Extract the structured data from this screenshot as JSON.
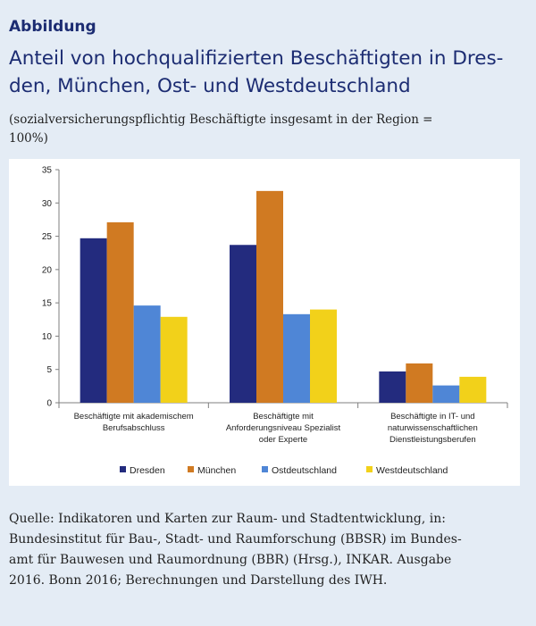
{
  "header": {
    "kicker": "Abbildung",
    "title_lines": [
      "Anteil von hochqualifizierten Beschäftigten in Dres-",
      "den, München, Ost- und Westdeutschland"
    ],
    "subtitle_lines": [
      "(sozialversicherungspflichtig Beschäftigte insgesamt in der Region =",
      "100%)"
    ]
  },
  "source_lines": [
    "Quelle: Indikatoren und Karten zur Raum- und Stadtentwicklung, in:",
    "Bundesinstitut für Bau-, Stadt- und Raumforschung (BBSR) im Bundes-",
    "amt für Bauwesen und Raumordnung (BBR) (Hrsg.), INKAR. Ausgabe",
    "2016. Bonn 2016; Berechnungen und Darstellung des IWH."
  ],
  "chart_data": {
    "type": "bar",
    "title": "",
    "xlabel": "",
    "ylabel": "",
    "ylim": [
      0,
      35
    ],
    "yticks": [
      0,
      5,
      10,
      15,
      20,
      25,
      30,
      35
    ],
    "grid": false,
    "legend_position": "bottom",
    "categories": [
      [
        "Beschäftigte mit akademischem",
        "Berufsabschluss"
      ],
      [
        "Beschäftigte mit",
        "Anforderungsniveau Spezialist",
        "oder Experte"
      ],
      [
        "Beschäftigte in IT- und",
        "naturwissenschaftlichen",
        "Dienstleistungsberufen"
      ]
    ],
    "series": [
      {
        "name": "Dresden",
        "color": "#232b7e",
        "values": [
          24.7,
          23.7,
          4.7
        ]
      },
      {
        "name": "München",
        "color": "#d07a22",
        "values": [
          27.1,
          31.8,
          5.9
        ]
      },
      {
        "name": "Ostdeutschland",
        "color": "#4f86d6",
        "values": [
          14.6,
          13.3,
          2.6
        ]
      },
      {
        "name": "Westdeutschland",
        "color": "#f2d11a",
        "values": [
          12.9,
          14.0,
          3.9
        ]
      }
    ]
  }
}
